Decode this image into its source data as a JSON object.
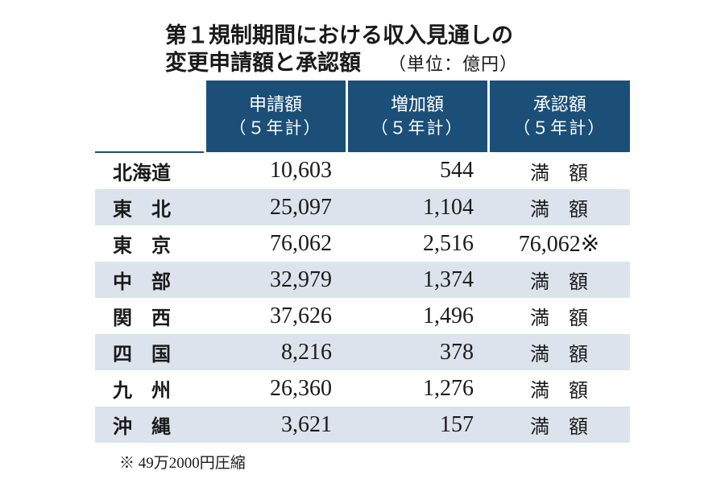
{
  "title": {
    "line1": "第１規制期間における収入見通しの",
    "line2": "変更申請額と承認額",
    "unit": "（単位：億円）"
  },
  "table": {
    "headers": [
      {
        "main": "申請額",
        "sub": "（５年計）"
      },
      {
        "main": "増加額",
        "sub": "（５年計）"
      },
      {
        "main": "承認額",
        "sub": "（５年計）"
      }
    ],
    "rows": [
      {
        "region": "北海道",
        "application": "10,603",
        "increase": "544",
        "approved": "満　額"
      },
      {
        "region": "東　北",
        "application": "25,097",
        "increase": "1,104",
        "approved": "満　額"
      },
      {
        "region": "東　京",
        "application": "76,062",
        "increase": "2,516",
        "approved": "76,062※"
      },
      {
        "region": "中　部",
        "application": "32,979",
        "increase": "1,374",
        "approved": "満　額"
      },
      {
        "region": "関　西",
        "application": "37,626",
        "increase": "1,496",
        "approved": "満　額"
      },
      {
        "region": "四　国",
        "application": "8,216",
        "increase": "378",
        "approved": "満　額"
      },
      {
        "region": "九　州",
        "application": "26,360",
        "increase": "1,276",
        "approved": "満　額"
      },
      {
        "region": "沖　縄",
        "application": "3,621",
        "increase": "157",
        "approved": "満　額"
      }
    ]
  },
  "footnote": "※ 49万2000円圧縮",
  "colors": {
    "header_bg": "#1b4f78",
    "row_shade": "#dde3ec"
  }
}
